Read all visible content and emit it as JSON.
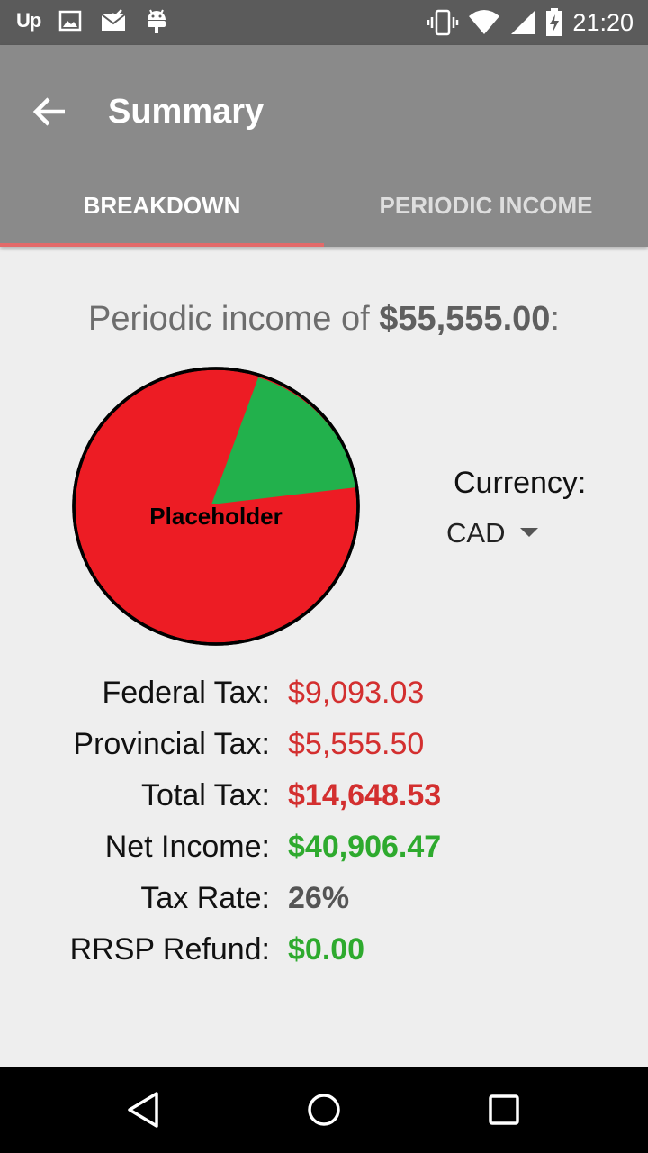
{
  "status_bar": {
    "time": "21:20",
    "left_icons": [
      "upwork-icon",
      "image-icon",
      "mail-check-icon",
      "android-icon"
    ],
    "upwork_text": "Up",
    "right_icons": [
      "vibrate-icon",
      "wifi-icon",
      "signal-icon",
      "battery-charging-icon"
    ]
  },
  "app_bar": {
    "title": "Summary",
    "tabs": [
      {
        "label": "BREAKDOWN",
        "active": true
      },
      {
        "label": "PERIODIC INCOME",
        "active": false
      }
    ]
  },
  "summary": {
    "headline_prefix": "Periodic income of ",
    "headline_amount": "$55,555.00",
    "headline_suffix": ":",
    "chart_placeholder": "Placeholder",
    "currency_label": "Currency:",
    "currency_value": "CAD",
    "rows": [
      {
        "label": "Federal Tax:",
        "value": "$9,093.03"
      },
      {
        "label": "Provincial Tax:",
        "value": "$5,555.50"
      },
      {
        "label": "Total Tax:",
        "value": "$14,648.53"
      },
      {
        "label": "Net Income:",
        "value": "$40,906.47"
      },
      {
        "label": "Tax Rate:",
        "value": "26%"
      },
      {
        "label": "RRSP Refund:",
        "value": "$0.00"
      }
    ]
  },
  "colors": {
    "tax_red": "#d32f2f",
    "income_green": "#2eaa2e",
    "pie_red": "#ed1c24",
    "pie_green": "#22b14c"
  },
  "nav_bar": [
    "back-triangle-icon",
    "home-circle-icon",
    "recents-square-icon"
  ]
}
